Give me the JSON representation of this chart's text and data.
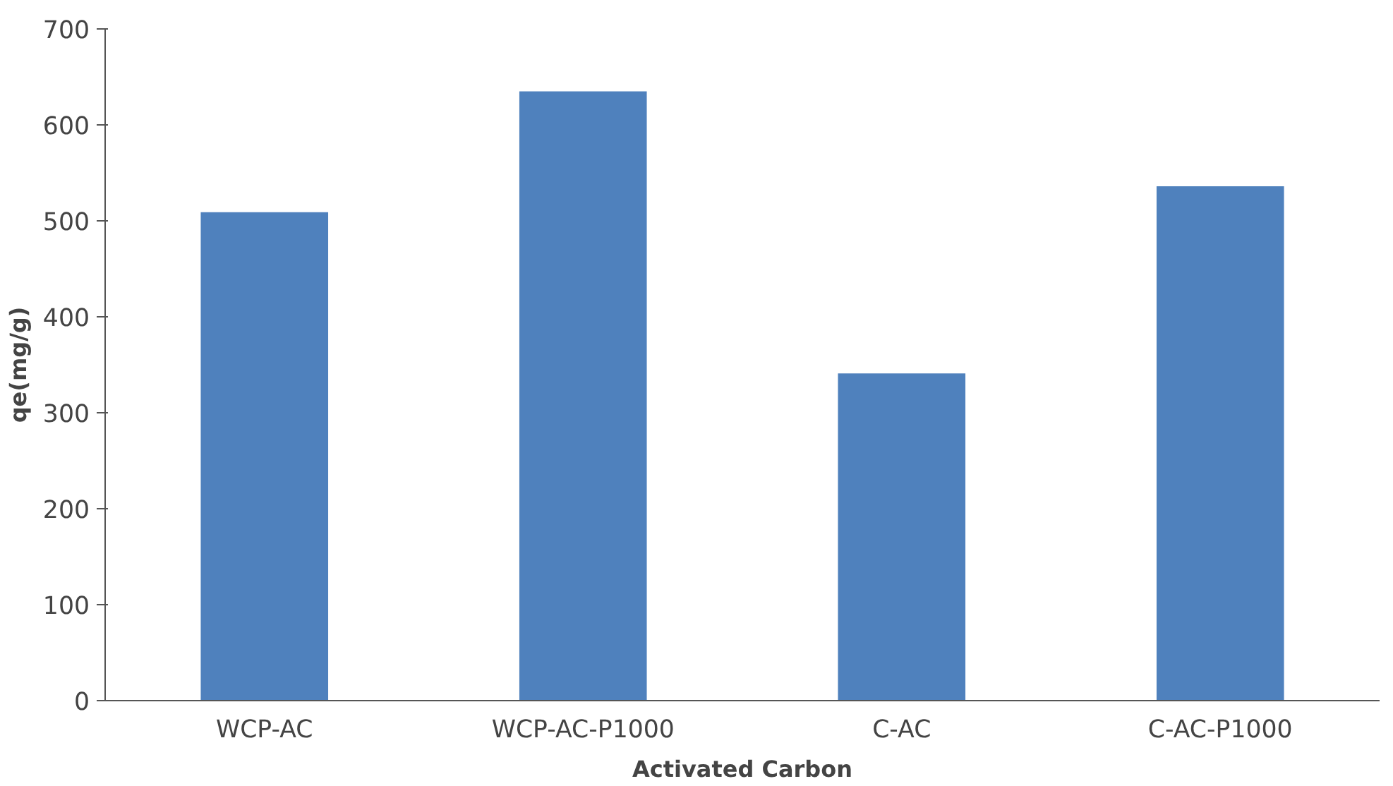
{
  "chart_data": {
    "type": "bar",
    "xlabel": "Activated Carbon",
    "ylabel": "qe(mg/g)",
    "categories": [
      "WCP-AC",
      "WCP-AC-P1000",
      "C-AC",
      "C-AC-P1000"
    ],
    "values": [
      509,
      635,
      341,
      536
    ],
    "color": "#4f81bd",
    "ylim": [
      0,
      700
    ],
    "yticks": [
      0,
      100,
      200,
      300,
      400,
      500,
      600,
      700
    ],
    "grid": false
  }
}
